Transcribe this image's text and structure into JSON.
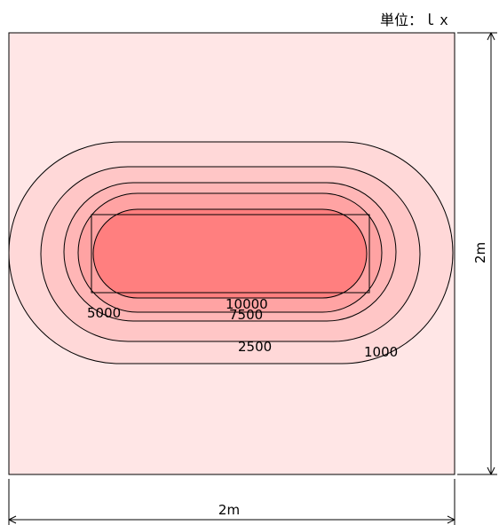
{
  "unit_label": "単位：ｌｘ",
  "dimension_width": "2m",
  "dimension_height": "2m",
  "contours": [
    {
      "value": 1000,
      "label": "1000",
      "color": "#ffd8d8"
    },
    {
      "value": 2500,
      "label": "2500",
      "color": "#ffc6c6"
    },
    {
      "value": 5000,
      "label": "5000",
      "color": "#ffb6b6"
    },
    {
      "value": 7500,
      "label": "7500",
      "color": "#ffa3a3"
    },
    {
      "value": 10000,
      "label": "10000",
      "color": "#ff7f7f"
    }
  ],
  "background_color": "#ffe6e6",
  "line_color": "#000000"
}
